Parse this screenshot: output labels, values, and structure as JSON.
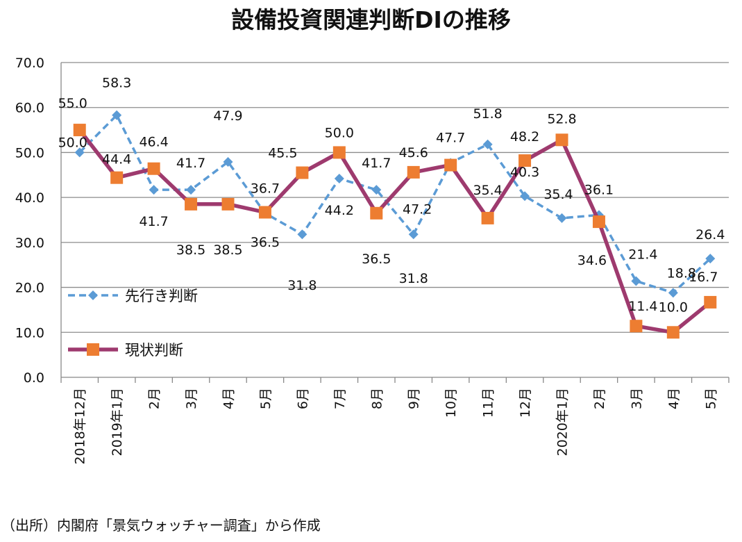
{
  "chart_data": {
    "type": "line",
    "title": "設備投資関連判断DIの推移",
    "xlabel": "",
    "ylabel": "",
    "ylim": [
      0,
      70
    ],
    "yticks": [
      "0.0",
      "10.0",
      "20.0",
      "30.0",
      "40.0",
      "50.0",
      "60.0",
      "70.0"
    ],
    "grid": true,
    "legend_position": "bottom-left",
    "categories": [
      "2018年12月",
      "2019年1月",
      "2月",
      "3月",
      "4月",
      "5月",
      "6月",
      "7月",
      "8月",
      "9月",
      "10月",
      "11月",
      "12月",
      "2020年1月",
      "2月",
      "3月",
      "4月",
      "5月"
    ],
    "series": [
      {
        "name": "先行き判断",
        "style": "dashed",
        "marker": "diamond",
        "color": "#5B9BD5",
        "values": [
          50.0,
          58.3,
          41.7,
          41.7,
          47.9,
          36.5,
          31.8,
          44.2,
          41.7,
          31.8,
          47.7,
          51.8,
          40.3,
          35.4,
          36.1,
          21.4,
          18.8,
          26.4
        ]
      },
      {
        "name": "現状判断",
        "style": "solid",
        "marker": "square",
        "color": "#9E3A6E",
        "marker_color": "#ED7D31",
        "values": [
          55.0,
          44.4,
          46.4,
          38.5,
          38.5,
          36.7,
          45.5,
          50.0,
          36.5,
          45.6,
          47.2,
          35.4,
          48.2,
          52.8,
          34.6,
          11.4,
          10.0,
          16.7
        ]
      }
    ]
  },
  "source_note": "（出所）内閣府「景気ウォッチャー調査」から作成"
}
